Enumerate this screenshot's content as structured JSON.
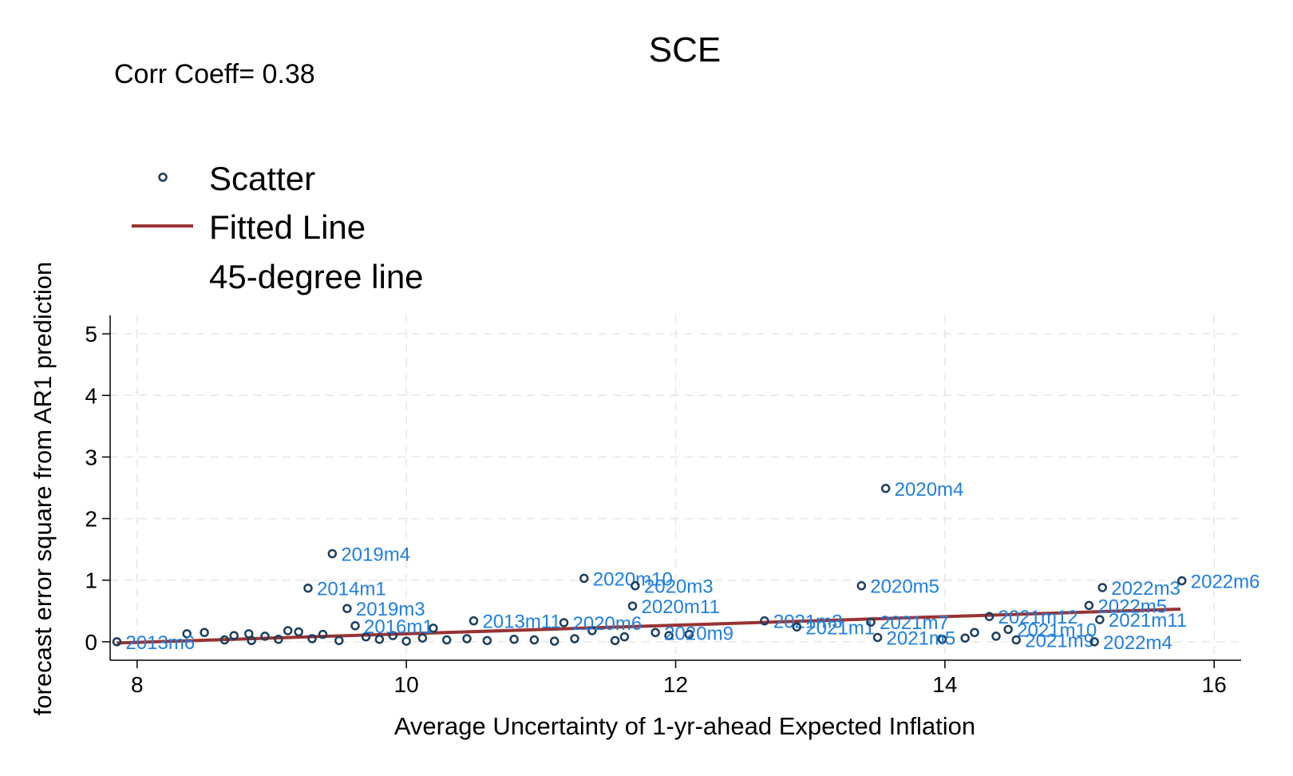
{
  "chart_data": {
    "type": "scatter",
    "title": "SCE",
    "annotation": "Corr Coeff= 0.38",
    "xlabel": "Average Uncertainty of 1-yr-ahead Expected Inflation",
    "ylabel": "forecast error square from AR1 prediction",
    "xlim": [
      7.8,
      16.2
    ],
    "ylim": [
      -0.3,
      5.3
    ],
    "xticks": [
      8,
      10,
      12,
      14,
      16
    ],
    "yticks": [
      0,
      1,
      2,
      3,
      4,
      5
    ],
    "grid": true,
    "legend_position": "top-left",
    "legend": {
      "scatter": "Scatter",
      "fitted": "Fitted Line",
      "diagonal": "45-degree line"
    },
    "colors": {
      "marker": "#1c3f5e",
      "label": "#1f7fe0",
      "fitted": "#993333"
    },
    "fitted_line": {
      "x": [
        7.85,
        15.75
      ],
      "y": [
        -0.02,
        0.53
      ]
    },
    "labeled_points": [
      {
        "x": 7.85,
        "y": 0.0,
        "label": "2013m6"
      },
      {
        "x": 9.45,
        "y": 1.43,
        "label": "2019m4"
      },
      {
        "x": 9.27,
        "y": 0.87,
        "label": "2014m1"
      },
      {
        "x": 9.56,
        "y": 0.54,
        "label": "2019m3"
      },
      {
        "x": 9.62,
        "y": 0.26,
        "label": "2016m1"
      },
      {
        "x": 10.5,
        "y": 0.34,
        "label": "2013m11"
      },
      {
        "x": 11.17,
        "y": 0.31,
        "label": "2020m6"
      },
      {
        "x": 11.32,
        "y": 1.03,
        "label": "2020m10"
      },
      {
        "x": 11.7,
        "y": 0.91,
        "label": "2020m3"
      },
      {
        "x": 11.68,
        "y": 0.58,
        "label": "2020m11"
      },
      {
        "x": 11.85,
        "y": 0.15,
        "label": "2020m9"
      },
      {
        "x": 13.56,
        "y": 2.49,
        "label": "2020m4"
      },
      {
        "x": 13.38,
        "y": 0.91,
        "label": "2020m5"
      },
      {
        "x": 12.66,
        "y": 0.34,
        "label": "2021m3"
      },
      {
        "x": 12.9,
        "y": 0.24,
        "label": "2021m1"
      },
      {
        "x": 13.45,
        "y": 0.32,
        "label": "2021m7"
      },
      {
        "x": 13.5,
        "y": 0.07,
        "label": "2021m5"
      },
      {
        "x": 14.33,
        "y": 0.41,
        "label": "2021m12"
      },
      {
        "x": 14.47,
        "y": 0.2,
        "label": "2021m10"
      },
      {
        "x": 14.53,
        "y": 0.03,
        "label": "2021m9"
      },
      {
        "x": 15.17,
        "y": 0.88,
        "label": "2022m3"
      },
      {
        "x": 15.07,
        "y": 0.59,
        "label": "2022m5"
      },
      {
        "x": 15.15,
        "y": 0.36,
        "label": "2021m11"
      },
      {
        "x": 15.11,
        "y": 0.0,
        "label": "2022m4"
      },
      {
        "x": 15.76,
        "y": 0.99,
        "label": "2022m6"
      }
    ],
    "cluster_points": [
      {
        "x": 8.37,
        "y": 0.13
      },
      {
        "x": 8.5,
        "y": 0.15
      },
      {
        "x": 8.65,
        "y": 0.03
      },
      {
        "x": 8.72,
        "y": 0.1
      },
      {
        "x": 8.83,
        "y": 0.13
      },
      {
        "x": 8.85,
        "y": 0.02
      },
      {
        "x": 8.95,
        "y": 0.09
      },
      {
        "x": 9.05,
        "y": 0.04
      },
      {
        "x": 9.12,
        "y": 0.18
      },
      {
        "x": 9.2,
        "y": 0.16
      },
      {
        "x": 9.3,
        "y": 0.05
      },
      {
        "x": 9.38,
        "y": 0.12
      },
      {
        "x": 9.5,
        "y": 0.02
      },
      {
        "x": 9.7,
        "y": 0.08
      },
      {
        "x": 9.8,
        "y": 0.04
      },
      {
        "x": 9.9,
        "y": 0.1
      },
      {
        "x": 10.0,
        "y": 0.01
      },
      {
        "x": 10.12,
        "y": 0.06
      },
      {
        "x": 10.2,
        "y": 0.22
      },
      {
        "x": 10.3,
        "y": 0.03
      },
      {
        "x": 10.45,
        "y": 0.05
      },
      {
        "x": 10.6,
        "y": 0.02
      },
      {
        "x": 10.8,
        "y": 0.04
      },
      {
        "x": 10.95,
        "y": 0.03
      },
      {
        "x": 11.1,
        "y": 0.01
      },
      {
        "x": 11.25,
        "y": 0.05
      },
      {
        "x": 11.38,
        "y": 0.18
      },
      {
        "x": 11.55,
        "y": 0.02
      },
      {
        "x": 11.62,
        "y": 0.08
      },
      {
        "x": 11.95,
        "y": 0.1
      },
      {
        "x": 12.1,
        "y": 0.12
      },
      {
        "x": 13.98,
        "y": 0.04
      },
      {
        "x": 14.15,
        "y": 0.06
      },
      {
        "x": 14.22,
        "y": 0.15
      },
      {
        "x": 14.38,
        "y": 0.09
      }
    ]
  }
}
